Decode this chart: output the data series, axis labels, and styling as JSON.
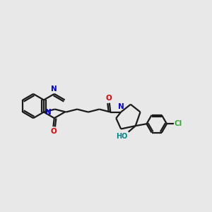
{
  "bg_color": "#e8e8e8",
  "bond_color": "#1a1a1a",
  "N_color": "#0000dd",
  "O_color": "#dd0000",
  "Cl_color": "#33aa33",
  "OH_color": "#008888",
  "lw": 1.6,
  "fs": 7.5,
  "xlim": [
    0.0,
    10.5
  ],
  "ylim": [
    2.5,
    7.5
  ]
}
